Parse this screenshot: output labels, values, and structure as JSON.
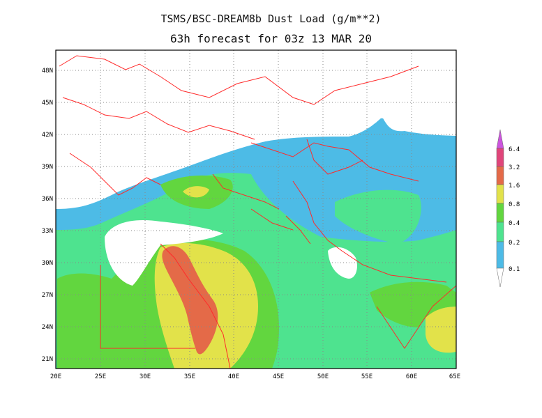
{
  "title": "TSMS/BSC-DREAM8b Dust Load (g/m**2)",
  "subtitle": "63h forecast for 03z 13 MAR 20",
  "lat_labels": [
    "48N",
    "45N",
    "42N",
    "39N",
    "36N",
    "33N",
    "30N",
    "27N",
    "24N",
    "21N"
  ],
  "lon_labels": [
    "20E",
    "25E",
    "30E",
    "35E",
    "40E",
    "45E",
    "50E",
    "55E",
    "60E",
    "65E"
  ],
  "legend": {
    "levels": [
      "6.4",
      "3.2",
      "1.6",
      "0.8",
      "0.4",
      "0.2",
      "0.1"
    ],
    "colors": {
      "0.1": "#4dbbe6",
      "0.2": "#4ee38f",
      "0.4": "#62d63f",
      "0.8": "#e2e24a",
      "1.6": "#e46a48",
      "3.2": "#e0457a",
      "6.4": "#cc55dd"
    }
  },
  "colors": {
    "borders": "#ff2a2a",
    "grid": "#888888",
    "land": "#ffffff"
  }
}
